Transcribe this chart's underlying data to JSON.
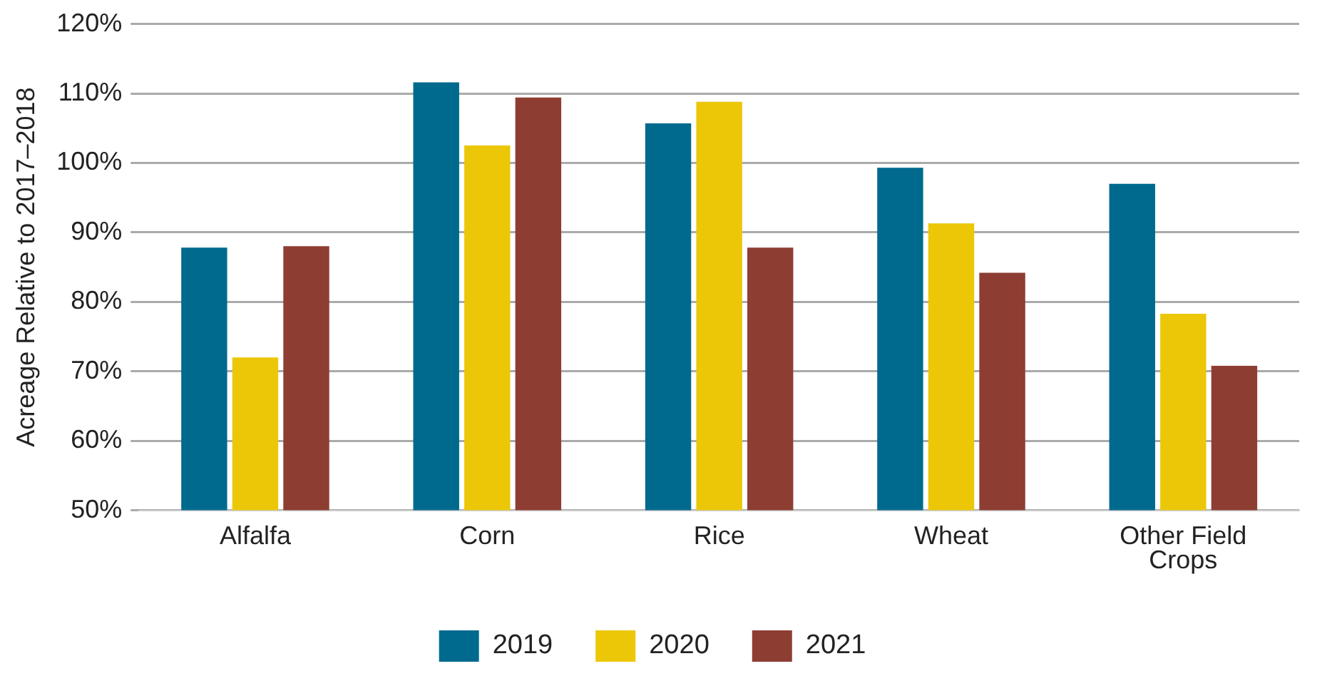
{
  "chart_data": {
    "type": "bar",
    "ylabel": "Acreage Relative to 2017–2018",
    "categories": [
      "Alfalfa",
      "Corn",
      "Rice",
      "Wheat",
      "Other Field Crops"
    ],
    "series": [
      {
        "name": "2019",
        "color": "#006a8e",
        "values": [
          87.8,
          111.6,
          105.7,
          99.3,
          97.0
        ]
      },
      {
        "name": "2020",
        "color": "#ecc707",
        "values": [
          72.0,
          102.5,
          108.8,
          91.3,
          78.3
        ]
      },
      {
        "name": "2021",
        "color": "#8e3d33",
        "values": [
          88.0,
          109.4,
          87.8,
          84.2,
          70.8
        ]
      }
    ],
    "ylim": [
      50,
      120
    ],
    "yticks": [
      {
        "value": 50,
        "label": "50%"
      },
      {
        "value": 60,
        "label": "60%"
      },
      {
        "value": 70,
        "label": "70%"
      },
      {
        "value": 80,
        "label": "80%"
      },
      {
        "value": 90,
        "label": "90%"
      },
      {
        "value": 100,
        "label": "100%"
      },
      {
        "value": 110,
        "label": "110%"
      },
      {
        "value": 120,
        "label": "120%"
      }
    ],
    "grid": "y",
    "legend": "bottom"
  }
}
